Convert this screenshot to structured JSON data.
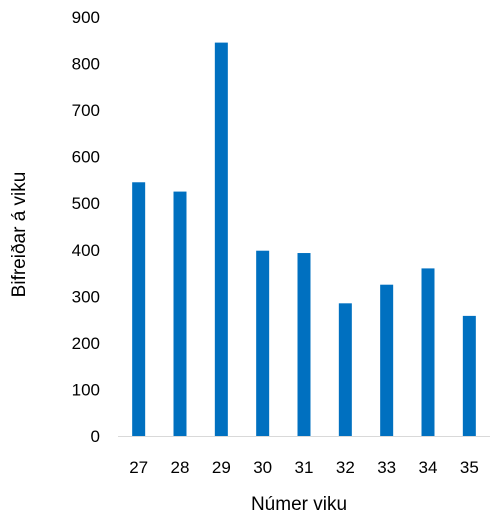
{
  "chart_data": {
    "type": "bar",
    "title": "",
    "xlabel": "Númer viku",
    "ylabel": "Bifreiðar á viku",
    "categories": [
      "27",
      "28",
      "29",
      "30",
      "31",
      "32",
      "33",
      "34",
      "35"
    ],
    "values": [
      545,
      525,
      845,
      398,
      393,
      285,
      325,
      360,
      258
    ],
    "ylim": [
      0,
      900
    ],
    "yticks": [
      0,
      100,
      200,
      300,
      400,
      500,
      600,
      700,
      800,
      900
    ],
    "grid": false,
    "legend": "none",
    "bar_color": "#0070C0",
    "axis_color": "#D9D9D9"
  }
}
